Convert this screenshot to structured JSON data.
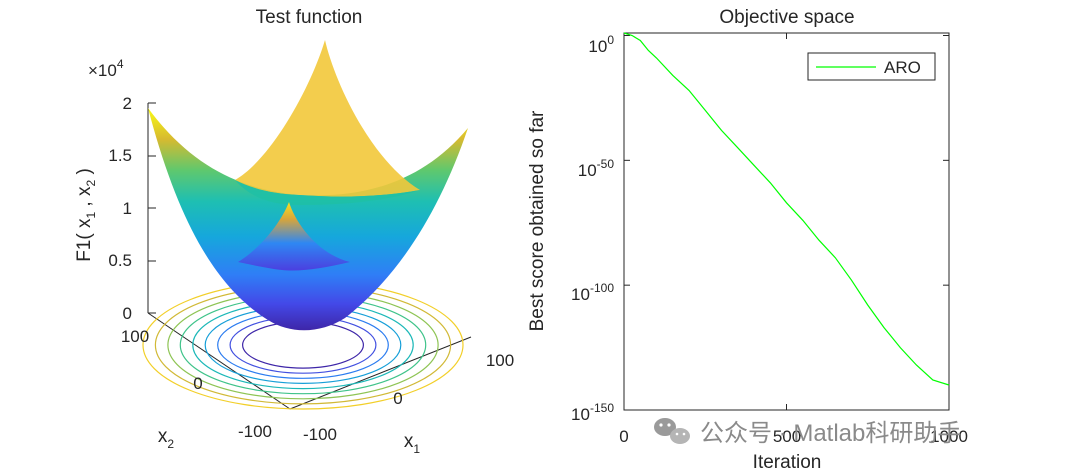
{
  "chart_data": [
    {
      "type": "surface",
      "title": "Test function",
      "function": "F1",
      "formula": "x1^2 + x2^2",
      "zlabel": "F1( x",
      "zlabel_mid": " , x",
      "zlabel_end": " )",
      "sub1": "1",
      "sub2": "2",
      "z_multiplier_base": "×10",
      "z_multiplier_exp": "4",
      "z_ticks": [
        "0",
        "0.5",
        "1",
        "1.5",
        "2"
      ],
      "zlim": [
        0,
        2
      ],
      "x1_label": "x",
      "x1_sub": "1",
      "x2_label": "x",
      "x2_sub": "2",
      "x1_ticks": [
        "-100",
        "0",
        "100"
      ],
      "x2_ticks": [
        "100",
        "0",
        "-100"
      ],
      "xlim": [
        -100,
        100
      ],
      "ylim": [
        -100,
        100
      ]
    },
    {
      "type": "line",
      "title": "Objective space",
      "xlabel": "Iteration",
      "ylabel": "Best score obtained so far",
      "yscale": "log",
      "x_ticks": [
        "0",
        "500",
        "1000"
      ],
      "xlim": [
        0,
        1000
      ],
      "y_ticks": [
        {
          "base": "10",
          "exp": "0"
        },
        {
          "base": "10",
          "exp": "-50"
        },
        {
          "base": "10",
          "exp": "-100"
        },
        {
          "base": "10",
          "exp": "-150"
        }
      ],
      "ylim_exp": [
        -150,
        1
      ],
      "legend": "ARO",
      "legend_position": "top-right",
      "series": [
        {
          "name": "ARO",
          "color": "#00ff00",
          "x": [
            0,
            25,
            50,
            75,
            100,
            150,
            200,
            250,
            300,
            350,
            400,
            450,
            500,
            550,
            600,
            650,
            700,
            750,
            800,
            850,
            900,
            950,
            1000
          ],
          "log10_y": [
            1,
            0,
            -2,
            -6,
            -9,
            -16,
            -22,
            -30,
            -38,
            -45,
            -52,
            -59,
            -67,
            -74,
            -82,
            -89,
            -98,
            -108,
            -117,
            -125,
            -132,
            -138,
            -140
          ]
        }
      ]
    }
  ],
  "watermark": "公众号 · Matlab科研助手"
}
